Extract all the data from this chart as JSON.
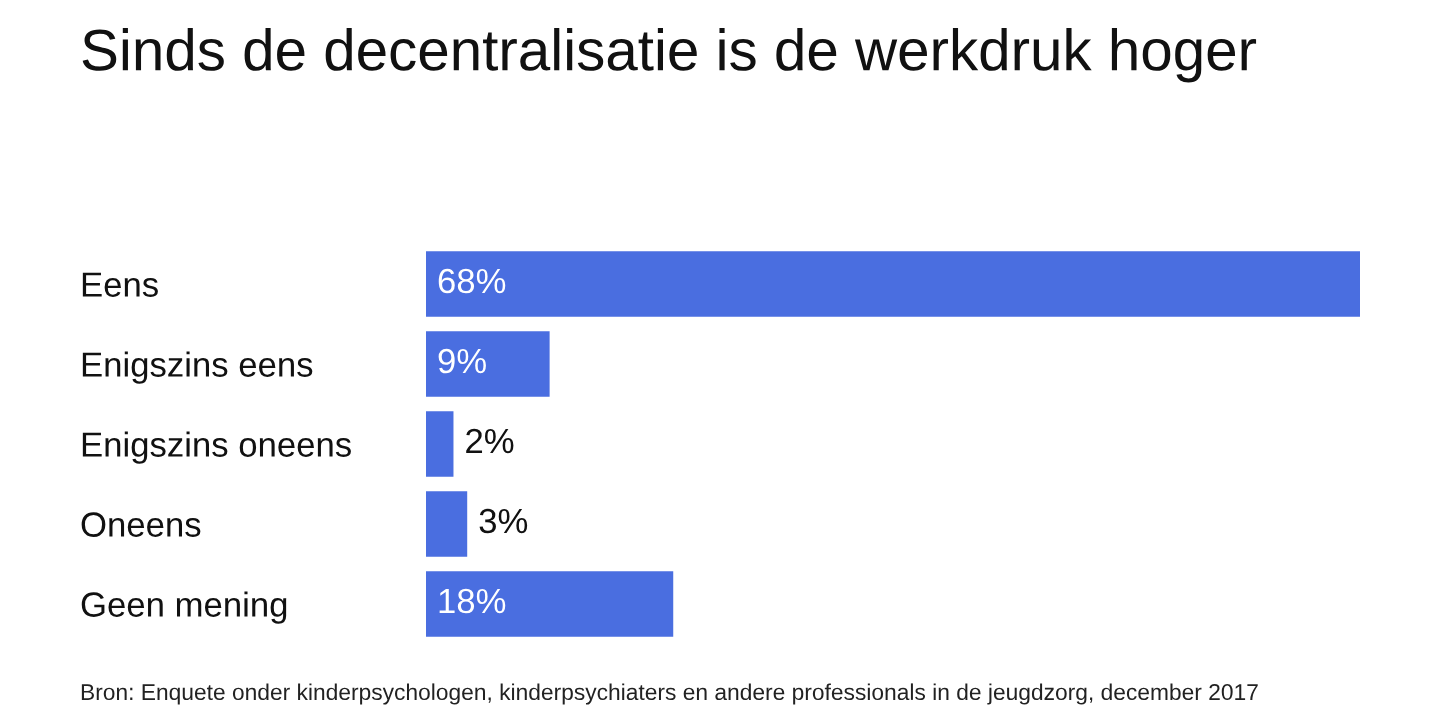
{
  "chart_data": {
    "type": "bar",
    "orientation": "horizontal",
    "title": "Sinds de decentralisatie is de werkdruk hoger",
    "categories": [
      "Eens",
      "Enigszins eens",
      "Enigszins oneens",
      "Oneens",
      "Geen mening"
    ],
    "values": [
      68,
      9,
      2,
      3,
      18
    ],
    "value_labels": [
      "68%",
      "9%",
      "2%",
      "3%",
      "18%"
    ],
    "color": "#4a6ee0",
    "annotations": [
      "Bron: Enquete onder kinderpsychologen, kinderpsychiaters en andere professionals in de jeugdzorg, december 2017"
    ]
  }
}
